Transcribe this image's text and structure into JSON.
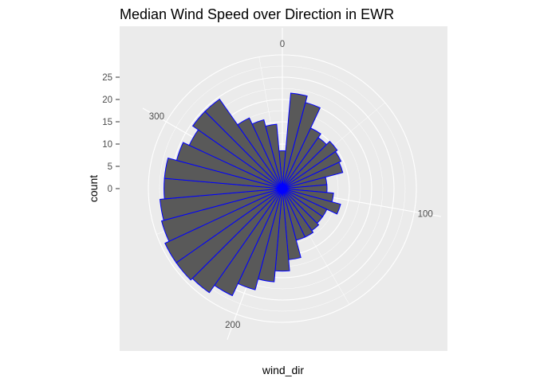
{
  "chart_data": {
    "type": "bar",
    "coord": "polar",
    "title": "Median Wind Speed over Direction in EWR",
    "xlabel": "wind_dir",
    "ylabel": "count",
    "theta_ticks": [
      "0",
      "100",
      "200",
      "300"
    ],
    "theta_tick_values": [
      0,
      100,
      200,
      300
    ],
    "theta_range": [
      0,
      360
    ],
    "r_ticks": [
      "0",
      "5",
      "10",
      "15",
      "20",
      "25"
    ],
    "r_tick_values": [
      0,
      5,
      10,
      15,
      20,
      25
    ],
    "r_range": [
      0,
      30
    ],
    "bar_width_deg": 10,
    "grid": true,
    "colors": {
      "panel": "#ebebeb",
      "grid": "#ffffff",
      "bar_fill": "#595959",
      "bar_outline": "#0000ff"
    },
    "categories": [
      0,
      10,
      20,
      30,
      40,
      50,
      60,
      70,
      80,
      90,
      100,
      110,
      120,
      130,
      140,
      150,
      160,
      170,
      180,
      190,
      200,
      210,
      220,
      230,
      240,
      250,
      260,
      270,
      280,
      290,
      300,
      310,
      320,
      330,
      340,
      350
    ],
    "values": [
      8.5,
      21.5,
      20,
      15,
      14,
      15,
      14.5,
      14,
      10,
      10,
      11.5,
      13.5,
      11,
      11,
      11.5,
      12,
      12,
      16,
      18.5,
      21,
      23.5,
      26.5,
      28.5,
      29,
      29,
      28,
      27.5,
      26.5,
      26.5,
      24.5,
      23,
      24.5,
      24.5,
      17.5,
      16,
      14.5
    ]
  }
}
